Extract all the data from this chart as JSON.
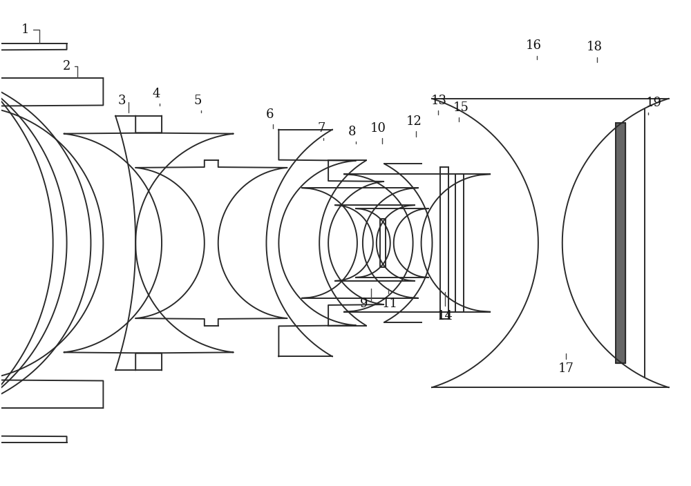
{
  "bg_color": "#ffffff",
  "line_color": "#2a2a2a",
  "line_width": 1.4,
  "figsize": [
    10.0,
    7.04
  ],
  "dpi": 100
}
